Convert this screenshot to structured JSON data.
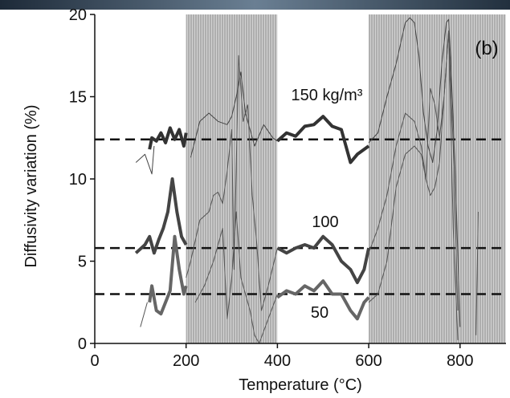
{
  "chart_data": {
    "type": "line",
    "y_label": "Diffusivity variation (%)",
    "x_label": "Temperature (°C)",
    "xlim": [
      0,
      900
    ],
    "xticks": [
      0,
      200,
      400,
      600,
      800
    ],
    "ylim": [
      0,
      20
    ],
    "yticks": [
      0,
      5,
      10,
      15,
      20
    ],
    "shaded_ranges": [
      [
        200,
        400
      ],
      [
        600,
        900
      ]
    ],
    "hlines": [
      12.4,
      5.8,
      3.0
    ],
    "annotations": [
      "(b)",
      "150 kg/m³",
      "100",
      "50"
    ],
    "series": [
      {
        "color": "#333333",
        "linewidth": 4,
        "x": [
          120,
          125,
          135,
          145,
          155,
          165,
          175,
          185,
          195,
          200,
          300,
          400,
          420,
          440,
          460,
          480,
          500,
          520,
          540,
          550,
          560,
          575,
          590,
          600
        ],
        "values": [
          11.8,
          12.5,
          12.3,
          12.8,
          12.2,
          13.1,
          12.4,
          13.0,
          12.0,
          12.8,
          null,
          12.3,
          12.8,
          12.6,
          13.2,
          13.3,
          13.8,
          13.2,
          13.0,
          12.0,
          11.0,
          11.5,
          11.8,
          12.0
        ]
      },
      {
        "color": "#444444",
        "linewidth": 1,
        "x": [
          90,
          110,
          125,
          130,
          200,
          210,
          230,
          250,
          270,
          290,
          300,
          310,
          320,
          330,
          350,
          370,
          390,
          400,
          500,
          600,
          620,
          640,
          660,
          680,
          690,
          700,
          710,
          720,
          730,
          740,
          750,
          760,
          770,
          775,
          780,
          790,
          800
        ],
        "values": [
          11.0,
          11.5,
          10.3,
          12.0,
          null,
          11.3,
          13.5,
          14.0,
          13.5,
          13.3,
          13.8,
          15.0,
          16.5,
          14.0,
          12.0,
          13.3,
          12.5,
          12.3,
          null,
          12.2,
          12.8,
          15.0,
          17.0,
          19.5,
          19.8,
          19.5,
          17.5,
          14.0,
          12.0,
          11.0,
          13.0,
          17.0,
          19.5,
          19.7,
          17.0,
          10.0,
          1.0
        ]
      },
      {
        "color": "#444444",
        "linewidth": 4,
        "x": [
          90,
          110,
          120,
          130,
          140,
          150,
          160,
          170,
          180,
          190,
          200,
          300,
          400,
          420,
          440,
          460,
          480,
          500,
          520,
          540,
          560,
          575,
          590,
          600
        ],
        "values": [
          5.5,
          6.0,
          6.5,
          5.5,
          6.3,
          7.0,
          8.0,
          10.0,
          8.0,
          6.5,
          6.0,
          null,
          5.8,
          5.5,
          5.8,
          6.0,
          5.8,
          6.5,
          6.0,
          5.0,
          4.5,
          3.7,
          4.5,
          5.8
        ]
      },
      {
        "color": "#555555",
        "linewidth": 1,
        "x": [
          200,
          210,
          230,
          250,
          260,
          270,
          280,
          290,
          300,
          305,
          315,
          325,
          335,
          345,
          355,
          365,
          380,
          400,
          500,
          600,
          620,
          640,
          660,
          680,
          700,
          715,
          725,
          735,
          745,
          755,
          765,
          775,
          785,
          795
        ],
        "values": [
          4.0,
          5.0,
          7.5,
          8.0,
          9.0,
          9.2,
          8.5,
          10.5,
          13.0,
          4.5,
          17.5,
          13.5,
          14.5,
          9.0,
          6.0,
          2.0,
          3.5,
          5.8,
          null,
          5.5,
          7.0,
          9.0,
          12.0,
          14.0,
          13.5,
          12.0,
          10.0,
          15.5,
          14.5,
          12.5,
          15.0,
          19.0,
          12.0,
          2.0
        ]
      },
      {
        "color": "#666666",
        "linewidth": 4,
        "x": [
          120,
          125,
          135,
          145,
          155,
          165,
          175,
          185,
          195,
          200,
          300,
          400,
          420,
          440,
          460,
          480,
          500,
          520,
          540,
          560,
          575,
          590,
          600
        ],
        "values": [
          2.5,
          3.5,
          2.0,
          1.8,
          2.5,
          3.2,
          6.5,
          4.5,
          3.0,
          3.5,
          null,
          2.8,
          3.2,
          3.0,
          3.5,
          3.2,
          3.8,
          3.0,
          3.0,
          2.0,
          1.5,
          2.5,
          2.8
        ]
      },
      {
        "color": "#555555",
        "linewidth": 1,
        "x": [
          100,
          115,
          200,
          220,
          240,
          260,
          270,
          280,
          290,
          300,
          310,
          320,
          340,
          350,
          360,
          380,
          400,
          500,
          600,
          620,
          640,
          660,
          680,
          700,
          715,
          725,
          735,
          745,
          755,
          765,
          775,
          785,
          795,
          815,
          835,
          840
        ],
        "values": [
          1.0,
          2.5,
          null,
          2.5,
          3.5,
          5.0,
          6.0,
          7.0,
          1.5,
          4.0,
          8.0,
          4.0,
          2.0,
          0.5,
          0.0,
          1.5,
          3.0,
          null,
          2.5,
          3.0,
          5.0,
          9.5,
          11.5,
          12.0,
          11.5,
          10.0,
          9.0,
          9.5,
          11.0,
          15.0,
          19.0,
          7.0,
          0.2,
          null,
          0.5,
          8.0
        ]
      }
    ]
  }
}
